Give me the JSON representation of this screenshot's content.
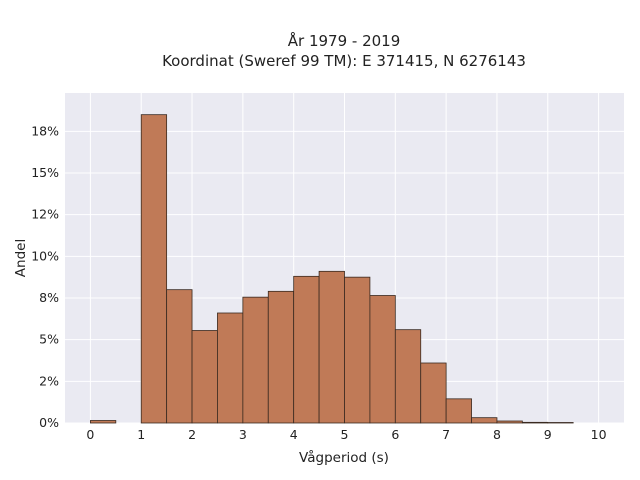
{
  "chart_data": {
    "type": "bar",
    "title_lines": [
      "År 1979 - 2019",
      "Koordinat (Sweref 99 TM): E 371415, N 6276143"
    ],
    "xlabel": "Vågperiod (s)",
    "ylabel": "Andel",
    "xlim": [
      -0.5,
      10.5
    ],
    "ylim": [
      0,
      19.8
    ],
    "x_ticks": [
      0,
      1,
      2,
      3,
      4,
      5,
      6,
      7,
      8,
      9,
      10
    ],
    "y_ticks": [
      0,
      2.5,
      5,
      7.5,
      10,
      12.5,
      15,
      17.5
    ],
    "y_tick_labels": [
      "0%",
      "2%",
      "5%",
      "8%",
      "10%",
      "12%",
      "15%",
      "18%"
    ],
    "bin_width": 0.5,
    "bins": [
      {
        "x0": 0.0,
        "value": 0.15
      },
      {
        "x0": 1.0,
        "value": 18.5
      },
      {
        "x0": 1.5,
        "value": 8.0
      },
      {
        "x0": 2.0,
        "value": 5.55
      },
      {
        "x0": 2.5,
        "value": 6.6
      },
      {
        "x0": 3.0,
        "value": 7.55
      },
      {
        "x0": 3.5,
        "value": 7.9
      },
      {
        "x0": 4.0,
        "value": 8.8
      },
      {
        "x0": 4.5,
        "value": 9.1
      },
      {
        "x0": 5.0,
        "value": 8.75
      },
      {
        "x0": 5.5,
        "value": 7.65
      },
      {
        "x0": 6.0,
        "value": 5.6
      },
      {
        "x0": 6.5,
        "value": 3.6
      },
      {
        "x0": 7.0,
        "value": 1.45
      },
      {
        "x0": 7.5,
        "value": 0.32
      },
      {
        "x0": 8.0,
        "value": 0.12
      },
      {
        "x0": 8.5,
        "value": 0.04
      },
      {
        "x0": 9.0,
        "value": 0.03
      }
    ],
    "colors": {
      "bar_fill": "#c07a57",
      "bar_edge": "#3a2a20",
      "plot_bg": "#eaeaf2",
      "grid": "#ffffff"
    },
    "grid": true
  }
}
